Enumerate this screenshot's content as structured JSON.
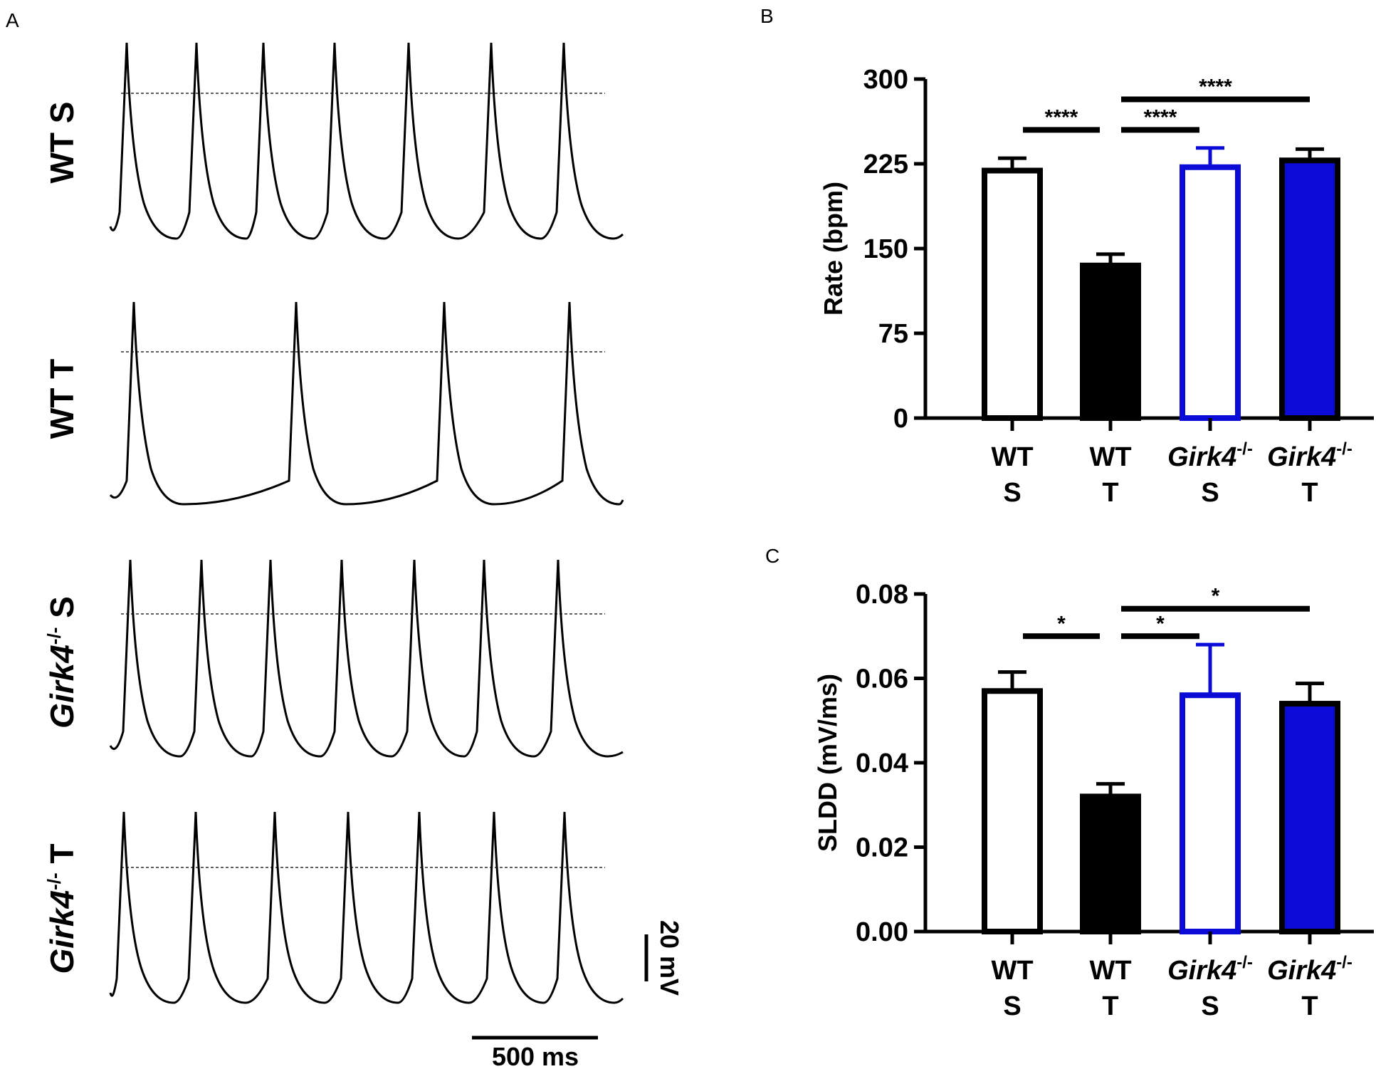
{
  "panels": {
    "A": "A",
    "B": "B",
    "C": "C"
  },
  "panel_a": {
    "traces": [
      {
        "label": "WT S",
        "label_parts": [
          "WT S"
        ],
        "italic_part": "",
        "n_spikes": 7
      },
      {
        "label": "WT T",
        "label_parts": [
          "WT T"
        ],
        "italic_part": "",
        "n_spikes": 4
      },
      {
        "label": "Girk4-/- S",
        "label_parts": [
          "Girk4",
          "-/-",
          " S"
        ],
        "italic_part": "Girk4",
        "n_spikes": 7
      },
      {
        "label": "Girk4-/- T",
        "label_parts": [
          "Girk4",
          "-/-",
          " T"
        ],
        "italic_part": "Girk4",
        "n_spikes": 7
      }
    ],
    "scale_time": "500 ms",
    "scale_voltage": "20 mV"
  },
  "chart_data": [
    {
      "type": "bar",
      "panel": "B",
      "title": "",
      "ylabel": "Rate (bpm)",
      "xlabel": "",
      "ylim": [
        0,
        300
      ],
      "yticks": [
        "0",
        "75",
        "150",
        "225",
        "300"
      ],
      "ytick_values": [
        0,
        75,
        150,
        225,
        300
      ],
      "categories": [
        [
          "WT",
          "S"
        ],
        [
          "WT",
          "T"
        ],
        [
          "Girk4",
          "-/-",
          "S"
        ],
        [
          "Girk4",
          "-/-",
          "T"
        ]
      ],
      "values": [
        219,
        135,
        222,
        228
      ],
      "errors": [
        11,
        10,
        17,
        10
      ],
      "colors": [
        "#000000",
        "#000000",
        "#0b0bd8",
        "#000000"
      ],
      "fills": [
        "#ffffff",
        "#000000",
        "#ffffff",
        "#0b0bd8"
      ],
      "significance": [
        {
          "from": 0,
          "to": 1,
          "label": "****",
          "level": 255
        },
        {
          "from": 1,
          "to": 2,
          "label": "****",
          "level": 255
        },
        {
          "from": 1,
          "to": 3,
          "label": "****",
          "level": 282
        }
      ]
    },
    {
      "type": "bar",
      "panel": "C",
      "title": "",
      "ylabel": "SLDD (mV/ms)",
      "xlabel": "",
      "ylim": [
        0,
        0.08
      ],
      "yticks": [
        "0.00",
        "0.02",
        "0.04",
        "0.06",
        "0.08"
      ],
      "ytick_values": [
        0,
        0.02,
        0.04,
        0.06,
        0.08
      ],
      "categories": [
        [
          "WT",
          "S"
        ],
        [
          "WT",
          "T"
        ],
        [
          "Girk4",
          "-/-",
          "S"
        ],
        [
          "Girk4",
          "-/-",
          "T"
        ]
      ],
      "values": [
        0.057,
        0.032,
        0.056,
        0.054
      ],
      "errors": [
        0.0045,
        0.003,
        0.012,
        0.0048
      ],
      "colors": [
        "#000000",
        "#000000",
        "#0b0bd8",
        "#000000"
      ],
      "fills": [
        "#ffffff",
        "#000000",
        "#ffffff",
        "#0b0bd8"
      ],
      "significance": [
        {
          "from": 0,
          "to": 1,
          "label": "*",
          "level": 0.07
        },
        {
          "from": 1,
          "to": 2,
          "label": "*",
          "level": 0.07
        },
        {
          "from": 1,
          "to": 3,
          "label": "*",
          "level": 0.0765
        }
      ]
    }
  ]
}
